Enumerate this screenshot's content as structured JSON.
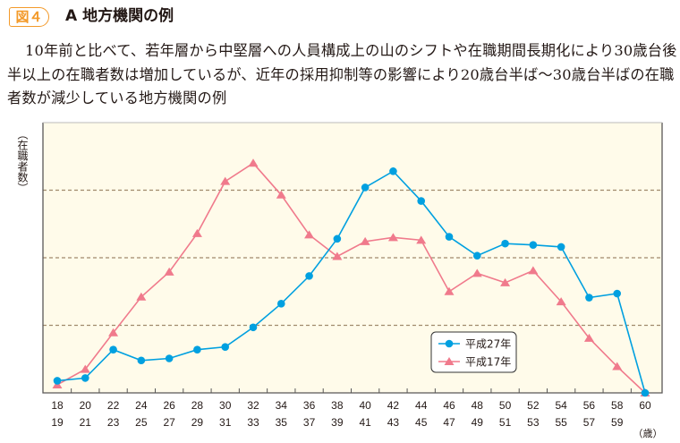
{
  "header": {
    "badge": "図４",
    "title": "A 地方機関の例",
    "description": "10年前と比べて、若年層から中堅層への人員構成上の山のシフトや在職期間長期化により30歳台後半以上の在職者数は増加しているが、近年の採用抑制等の影響により20歳台半ば～30歳台半ばの在職者数が減少している地方機関の例"
  },
  "colors": {
    "badge": "#f39a2a",
    "plot_bg": "#fffbea",
    "grid": "#a08a6c",
    "h27": "#00a0e0",
    "h17": "#f07a8c"
  },
  "chart_data": {
    "type": "line",
    "title": "",
    "ylabel": "（在職者数）",
    "xlabel": "（歳）",
    "y_tick_labels": "none",
    "grid": "horizontal dashed",
    "ylim": [
      0,
      4
    ],
    "legend_placement": "bottom-right",
    "categories": [
      [
        "18",
        "19"
      ],
      [
        "20",
        "21"
      ],
      [
        "22",
        "23"
      ],
      [
        "24",
        "25"
      ],
      [
        "26",
        "27"
      ],
      [
        "28",
        "29"
      ],
      [
        "30",
        "31"
      ],
      [
        "32",
        "33"
      ],
      [
        "34",
        "35"
      ],
      [
        "36",
        "37"
      ],
      [
        "38",
        "39"
      ],
      [
        "40",
        "41"
      ],
      [
        "42",
        "43"
      ],
      [
        "44",
        "45"
      ],
      [
        "46",
        "47"
      ],
      [
        "48",
        "49"
      ],
      [
        "50",
        "51"
      ],
      [
        "52",
        "53"
      ],
      [
        "54",
        "55"
      ],
      [
        "56",
        "57"
      ],
      [
        "58",
        "59"
      ],
      [
        "60",
        ""
      ]
    ],
    "series": [
      {
        "name": "平成27年",
        "marker": "circle",
        "values": [
          0.18,
          0.22,
          0.64,
          0.48,
          0.51,
          0.64,
          0.68,
          0.97,
          1.32,
          1.73,
          2.28,
          3.04,
          3.28,
          2.84,
          2.31,
          2.03,
          2.21,
          2.19,
          2.16,
          1.41,
          1.47,
          0
        ]
      },
      {
        "name": "平成17年",
        "marker": "triangle",
        "values": [
          0.12,
          0.35,
          0.89,
          1.42,
          1.79,
          2.36,
          3.13,
          3.4,
          2.93,
          2.34,
          2.02,
          2.24,
          2.3,
          2.26,
          1.5,
          1.77,
          1.63,
          1.81,
          1.35,
          0.81,
          0.39,
          0
        ]
      }
    ]
  }
}
